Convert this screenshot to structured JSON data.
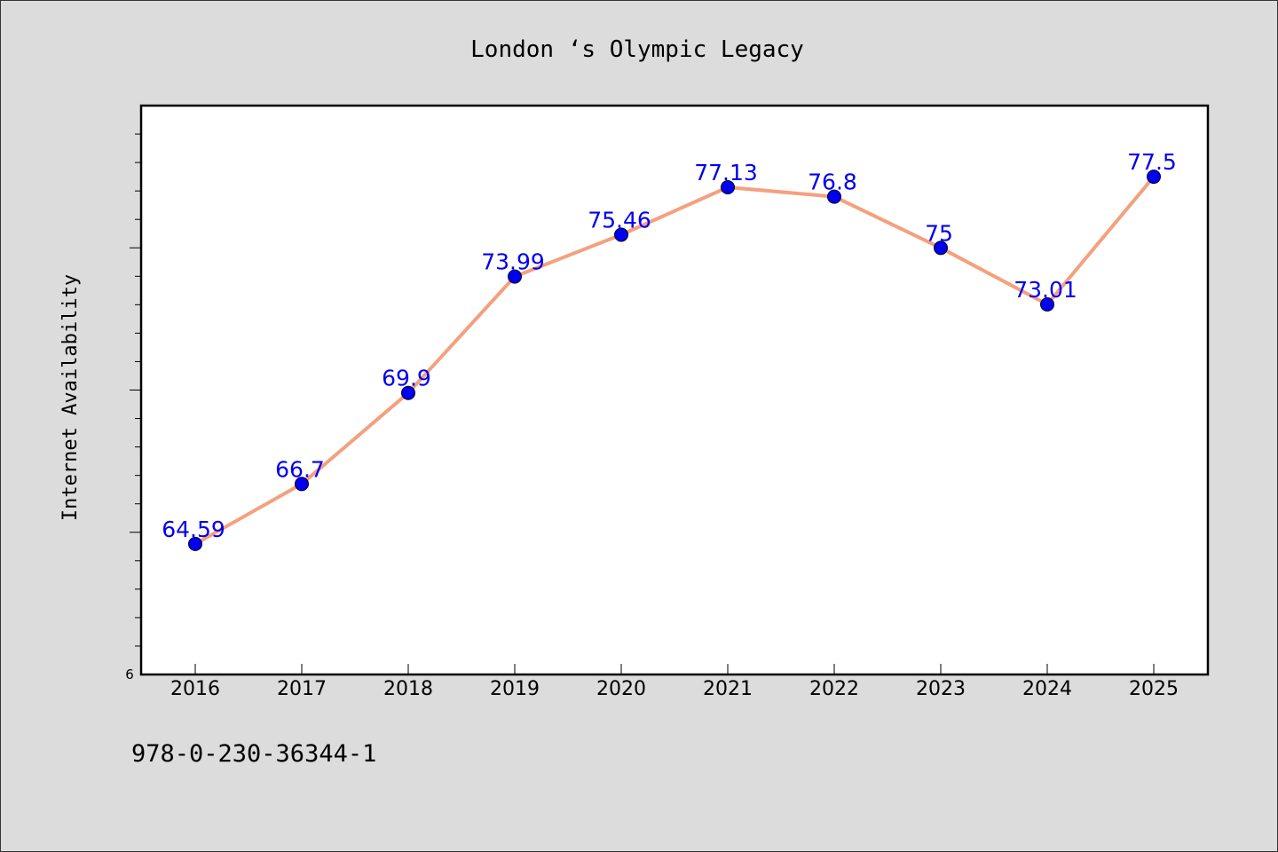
{
  "chart_data": {
    "type": "line",
    "title": "London ‘s Olympic Legacy",
    "xlabel": "",
    "ylabel": "Internet Availability",
    "categories": [
      "2016",
      "2017",
      "2018",
      "2019",
      "2020",
      "2021",
      "2022",
      "2023",
      "2024",
      "2025"
    ],
    "series": [
      {
        "values": [
          64.59,
          66.7,
          69.9,
          73.99,
          75.46,
          77.13,
          76.8,
          75,
          73.01,
          77.5
        ],
        "data_labels": [
          "64.59",
          "66.7",
          "69.9",
          "73.99",
          "75.46",
          "77.13",
          "76.8",
          "75",
          "73.01",
          "77.5"
        ]
      }
    ],
    "ylim": [
      60,
      80
    ],
    "y_tick_labels": [
      "6"
    ],
    "grid": false,
    "legend": "none",
    "colors": {
      "line": "#f4a07e",
      "marker": "#0000ee",
      "label": "#0000ee",
      "background": "#dcdcdc",
      "plot_background": "#ffffff"
    }
  },
  "footer": {
    "code": "978-0-230-36344-1"
  }
}
